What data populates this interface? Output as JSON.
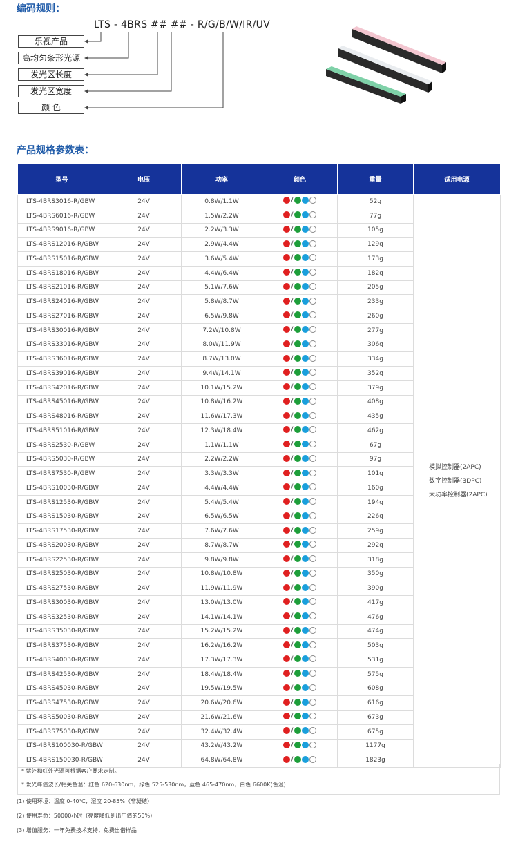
{
  "titles": {
    "coding_rule": "编码规则：",
    "spec_table": "产品规格参数表："
  },
  "code_rule": {
    "code": "LTS - 4BRS ## ## - R/G/B/W/IR/UV",
    "labels": [
      "乐视产品",
      "高均匀条形光源",
      "发光区长度",
      "发光区宽度",
      "颜  色"
    ]
  },
  "table": {
    "headers": [
      "型号",
      "电压",
      "功率",
      "颜色",
      "重量",
      "适用电源"
    ],
    "color_dots": {
      "slash": "/",
      "red": "#e02020",
      "green": "#1e9e3a",
      "blue": "#1a9fdc",
      "white": "#ffffff"
    },
    "power_supply": [
      "模拟控制器(2APC)",
      "数字控制器(3DPC)",
      "大功率控制器(2APC)"
    ],
    "rows": [
      [
        "LTS-4BRS3016-R/GBW",
        "24V",
        "0.8W/1.1W",
        "52g"
      ],
      [
        "LTS-4BRS6016-R/GBW",
        "24V",
        "1.5W/2.2W",
        "77g"
      ],
      [
        "LTS-4BRS9016-R/GBW",
        "24V",
        "2.2W/3.3W",
        "105g"
      ],
      [
        "LTS-4BRS12016-R/GBW",
        "24V",
        "2.9W/4.4W",
        "129g"
      ],
      [
        "LTS-4BRS15016-R/GBW",
        "24V",
        "3.6W/5.4W",
        "173g"
      ],
      [
        "LTS-4BRS18016-R/GBW",
        "24V",
        "4.4W/6.4W",
        "182g"
      ],
      [
        "LTS-4BRS21016-R/GBW",
        "24V",
        "5.1W/7.6W",
        "205g"
      ],
      [
        "LTS-4BRS24016-R/GBW",
        "24V",
        "5.8W/8.7W",
        "233g"
      ],
      [
        "LTS-4BRS27016-R/GBW",
        "24V",
        "6.5W/9.8W",
        "260g"
      ],
      [
        "LTS-4BRS30016-R/GBW",
        "24V",
        "7.2W/10.8W",
        "277g"
      ],
      [
        "LTS-4BRS33016-R/GBW",
        "24V",
        "8.0W/11.9W",
        "306g"
      ],
      [
        "LTS-4BRS36016-R/GBW",
        "24V",
        "8.7W/13.0W",
        "334g"
      ],
      [
        "LTS-4BRS39016-R/GBW",
        "24V",
        "9.4W/14.1W",
        "352g"
      ],
      [
        "LTS-4BRS42016-R/GBW",
        "24V",
        "10.1W/15.2W",
        "379g"
      ],
      [
        "LTS-4BRS45016-R/GBW",
        "24V",
        "10.8W/16.2W",
        "408g"
      ],
      [
        "LTS-4BRS48016-R/GBW",
        "24V",
        "11.6W/17.3W",
        "435g"
      ],
      [
        "LTS-4BRS51016-R/GBW",
        "24V",
        "12.3W/18.4W",
        "462g"
      ],
      [
        "LTS-4BRS2530-R/GBW",
        "24V",
        "1.1W/1.1W",
        "67g"
      ],
      [
        "LTS-4BRS5030-R/GBW",
        "24V",
        "2.2W/2.2W",
        "97g"
      ],
      [
        "LTS-4BRS7530-R/GBW",
        "24V",
        "3.3W/3.3W",
        "101g"
      ],
      [
        "LTS-4BRS10030-R/GBW",
        "24V",
        "4.4W/4.4W",
        "160g"
      ],
      [
        "LTS-4BRS12530-R/GBW",
        "24V",
        "5.4W/5.4W",
        "194g"
      ],
      [
        "LTS-4BRS15030-R/GBW",
        "24V",
        "6.5W/6.5W",
        "226g"
      ],
      [
        "LTS-4BRS17530-R/GBW",
        "24V",
        "7.6W/7.6W",
        "259g"
      ],
      [
        "LTS-4BRS20030-R/GBW",
        "24V",
        "8.7W/8.7W",
        "292g"
      ],
      [
        "LTS-4BRS22530-R/GBW",
        "24V",
        "9.8W/9.8W",
        "318g"
      ],
      [
        "LTS-4BRS25030-R/GBW",
        "24V",
        "10.8W/10.8W",
        "350g"
      ],
      [
        "LTS-4BRS27530-R/GBW",
        "24V",
        "11.9W/11.9W",
        "390g"
      ],
      [
        "LTS-4BRS30030-R/GBW",
        "24V",
        "13.0W/13.0W",
        "417g"
      ],
      [
        "LTS-4BRS32530-R/GBW",
        "24V",
        "14.1W/14.1W",
        "476g"
      ],
      [
        "LTS-4BRS35030-R/GBW",
        "24V",
        "15.2W/15.2W",
        "474g"
      ],
      [
        "LTS-4BRS37530-R/GBW",
        "24V",
        "16.2W/16.2W",
        "503g"
      ],
      [
        "LTS-4BRS40030-R/GBW",
        "24V",
        "17.3W/17.3W",
        "531g"
      ],
      [
        "LTS-4BRS42530-R/GBW",
        "24V",
        "18.4W/18.4W",
        "575g"
      ],
      [
        "LTS-4BRS45030-R/GBW",
        "24V",
        "19.5W/19.5W",
        "608g"
      ],
      [
        "LTS-4BRS47530-R/GBW",
        "24V",
        "20.6W/20.6W",
        "616g"
      ],
      [
        "LTS-4BRS50030-R/GBW",
        "24V",
        "21.6W/21.6W",
        "673g"
      ],
      [
        "LTS-4BRS75030-R/GBW",
        "24V",
        "32.4W/32.4W",
        "675g"
      ],
      [
        "LTS-4BRS100030-R/GBW",
        "24V",
        "43.2W/43.2W",
        "1177g"
      ],
      [
        "LTS-4BRS150030-R/GBW",
        "24V",
        "64.8W/64.8W",
        "1823g"
      ]
    ]
  },
  "notes": [
    "* 紫外和红外光源可根据客户要求定制。",
    "* 发光峰值波长/相关色温：红色:620-630nm，绿色:525-530nm，蓝色:465-470nm，白色:6600K(色温)"
  ],
  "footer": [
    "(1) 使用环境：温度 0-40℃，湿度 20-85%（非凝结）",
    "(2) 使用寿命：50000小时（亮度降低到出厂值的50%）",
    "(3) 增值服务：一年免费技术支持，免费出借样品"
  ]
}
